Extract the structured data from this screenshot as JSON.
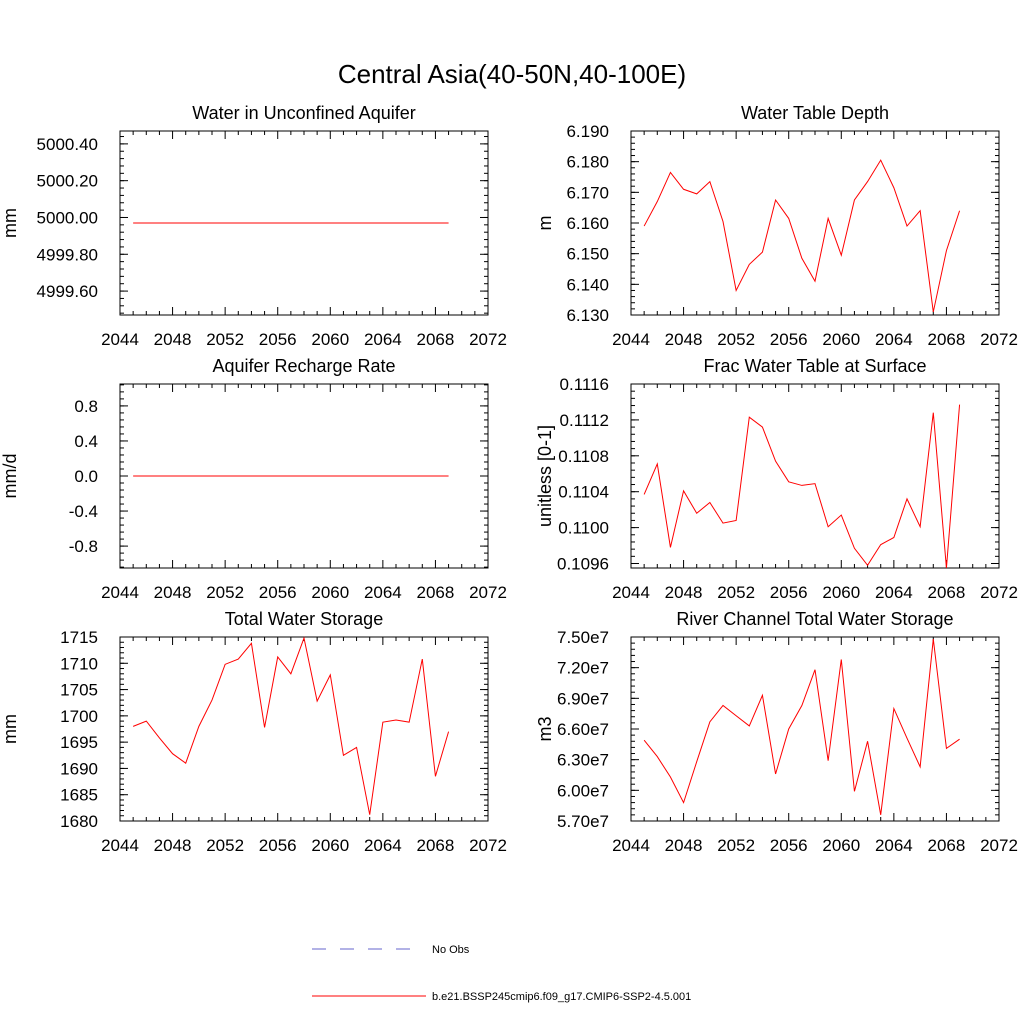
{
  "figure_title": "Central Asia(40-50N,40-100E)",
  "colors": {
    "model": "#ff0000",
    "obs": "#6666cc",
    "axes": "#000000"
  },
  "legend": {
    "obs_label": "No Obs",
    "model_label": "b.e21.BSSP245cmip6.f09_g17.CMIP6-SSP2-4.5.001"
  },
  "chart_data": [
    {
      "type": "line",
      "title": "Water in Unconfined Aquifer",
      "ylabel": "mm",
      "xlim": [
        2044,
        2072
      ],
      "ylim": [
        4999.47,
        5000.47
      ],
      "xticks": [
        2044,
        2048,
        2052,
        2056,
        2060,
        2064,
        2068,
        2072
      ],
      "yticks": [
        4999.6,
        4999.8,
        5000.0,
        5000.2,
        5000.4
      ],
      "ytick_labels": [
        "4999.60",
        "4999.80",
        "5000.00",
        "5000.20",
        "5000.40"
      ],
      "series": [
        {
          "x": [
            2045,
            2046,
            2047,
            2048,
            2049,
            2050,
            2051,
            2052,
            2053,
            2054,
            2055,
            2056,
            2057,
            2058,
            2059,
            2060,
            2061,
            2062,
            2063,
            2064,
            2065,
            2066,
            2067,
            2068,
            2069
          ],
          "values": [
            4999.97,
            4999.97,
            4999.97,
            4999.97,
            4999.97,
            4999.97,
            4999.97,
            4999.97,
            4999.97,
            4999.97,
            4999.97,
            4999.97,
            4999.97,
            4999.97,
            4999.97,
            4999.97,
            4999.97,
            4999.97,
            4999.97,
            4999.97,
            4999.97,
            4999.97,
            4999.97,
            4999.97,
            4999.97
          ]
        }
      ]
    },
    {
      "type": "line",
      "title": "Water Table Depth",
      "ylabel": "m",
      "xlim": [
        2044,
        2072
      ],
      "ylim": [
        6.13,
        6.19
      ],
      "xticks": [
        2044,
        2048,
        2052,
        2056,
        2060,
        2064,
        2068,
        2072
      ],
      "yticks": [
        6.13,
        6.14,
        6.15,
        6.16,
        6.17,
        6.18,
        6.19
      ],
      "ytick_labels": [
        "6.130",
        "6.140",
        "6.150",
        "6.160",
        "6.170",
        "6.180",
        "6.190"
      ],
      "series": [
        {
          "x": [
            2045,
            2046,
            2047,
            2048,
            2049,
            2050,
            2051,
            2052,
            2053,
            2054,
            2055,
            2056,
            2057,
            2058,
            2059,
            2060,
            2061,
            2062,
            2063,
            2064,
            2065,
            2066,
            2067,
            2068,
            2069
          ],
          "values": [
            6.159,
            6.167,
            6.1765,
            6.171,
            6.1695,
            6.1735,
            6.1605,
            6.138,
            6.1465,
            6.1505,
            6.1675,
            6.1615,
            6.1485,
            6.141,
            6.1615,
            6.1495,
            6.1675,
            6.1735,
            6.1805,
            6.1715,
            6.159,
            6.164,
            6.131,
            6.151,
            6.164
          ]
        }
      ]
    },
    {
      "type": "line",
      "title": "Aquifer Recharge Rate",
      "ylabel": "mm/d",
      "xlim": [
        2044,
        2072
      ],
      "ylim": [
        -1.05,
        1.05
      ],
      "xticks": [
        2044,
        2048,
        2052,
        2056,
        2060,
        2064,
        2068,
        2072
      ],
      "yticks": [
        -0.8,
        -0.4,
        0.0,
        0.4,
        0.8
      ],
      "ytick_labels": [
        "-0.8",
        "-0.4",
        "0.0",
        "0.4",
        "0.8"
      ],
      "series": [
        {
          "x": [
            2045,
            2046,
            2047,
            2048,
            2049,
            2050,
            2051,
            2052,
            2053,
            2054,
            2055,
            2056,
            2057,
            2058,
            2059,
            2060,
            2061,
            2062,
            2063,
            2064,
            2065,
            2066,
            2067,
            2068,
            2069
          ],
          "values": [
            0,
            0,
            0,
            0,
            0,
            0,
            0,
            0,
            0,
            0,
            0,
            0,
            0,
            0,
            0,
            0,
            0,
            0,
            0,
            0,
            0,
            0,
            0,
            0,
            0
          ]
        }
      ]
    },
    {
      "type": "line",
      "title": "Frac Water Table at Surface",
      "ylabel": "unitless [0-1]",
      "xlim": [
        2044,
        2072
      ],
      "ylim": [
        0.10955,
        0.1116
      ],
      "xticks": [
        2044,
        2048,
        2052,
        2056,
        2060,
        2064,
        2068,
        2072
      ],
      "yticks": [
        0.1096,
        0.11,
        0.1104,
        0.1108,
        0.1112,
        0.1116
      ],
      "ytick_labels": [
        "0.1096",
        "0.1100",
        "0.1104",
        "0.1108",
        "0.1112",
        "0.1116"
      ],
      "series": [
        {
          "x": [
            2045,
            2046,
            2047,
            2048,
            2049,
            2050,
            2051,
            2052,
            2053,
            2054,
            2055,
            2056,
            2057,
            2058,
            2059,
            2060,
            2061,
            2062,
            2063,
            2064,
            2065,
            2066,
            2067,
            2068,
            2069
          ],
          "values": [
            0.11037,
            0.11071,
            0.10978,
            0.11041,
            0.11016,
            0.11028,
            0.11005,
            0.11008,
            0.11123,
            0.11112,
            0.11074,
            0.11051,
            0.11047,
            0.11049,
            0.11001,
            0.11014,
            0.10977,
            0.10958,
            0.10981,
            0.10989,
            0.11032,
            0.11001,
            0.11128,
            0.10955,
            0.11137
          ]
        }
      ]
    },
    {
      "type": "line",
      "title": "Total Water Storage",
      "ylabel": "mm",
      "xlim": [
        2044,
        2072
      ],
      "ylim": [
        1680,
        1715
      ],
      "xticks": [
        2044,
        2048,
        2052,
        2056,
        2060,
        2064,
        2068,
        2072
      ],
      "yticks": [
        1680,
        1685,
        1690,
        1695,
        1700,
        1705,
        1710,
        1715
      ],
      "ytick_labels": [
        "1680",
        "1685",
        "1690",
        "1695",
        "1700",
        "1705",
        "1710",
        "1715"
      ],
      "series": [
        {
          "x": [
            2045,
            2046,
            2047,
            2048,
            2049,
            2050,
            2051,
            2052,
            2053,
            2054,
            2055,
            2056,
            2057,
            2058,
            2059,
            2060,
            2061,
            2062,
            2063,
            2064,
            2065,
            2066,
            2067,
            2068,
            2069
          ],
          "values": [
            1698,
            1699,
            1695.8,
            1692.8,
            1691,
            1698,
            1703,
            1709.8,
            1710.8,
            1713.8,
            1697.8,
            1711.2,
            1708,
            1714.8,
            1702.8,
            1707.8,
            1692.5,
            1694,
            1681.2,
            1698.8,
            1699.2,
            1698.8,
            1710.8,
            1688.5,
            1697
          ]
        }
      ]
    },
    {
      "type": "line",
      "title": "River Channel Total Water Storage",
      "ylabel": "m3",
      "xlim": [
        2044,
        2072
      ],
      "ylim": [
        57000000,
        75000000
      ],
      "xticks": [
        2044,
        2048,
        2052,
        2056,
        2060,
        2064,
        2068,
        2072
      ],
      "yticks": [
        57000000,
        60000000,
        63000000,
        66000000,
        69000000,
        72000000,
        75000000
      ],
      "ytick_labels": [
        "5.70e7",
        "6.00e7",
        "6.30e7",
        "6.60e7",
        "6.90e7",
        "7.20e7",
        "7.50e7"
      ],
      "series": [
        {
          "x": [
            2045,
            2046,
            2047,
            2048,
            2049,
            2050,
            2051,
            2052,
            2053,
            2054,
            2055,
            2056,
            2057,
            2058,
            2059,
            2060,
            2061,
            2062,
            2063,
            2064,
            2065,
            2066,
            2067,
            2068,
            2069
          ],
          "values": [
            64900000,
            63300000,
            61300000,
            58800000,
            62800000,
            66700000,
            68300000,
            67300000,
            66300000,
            69300000,
            61600000,
            66000000,
            68300000,
            71800000,
            62900000,
            72800000,
            59900000,
            64800000,
            57600000,
            68000000,
            65100000,
            62300000,
            74800000,
            64100000,
            65000000
          ]
        }
      ]
    }
  ]
}
